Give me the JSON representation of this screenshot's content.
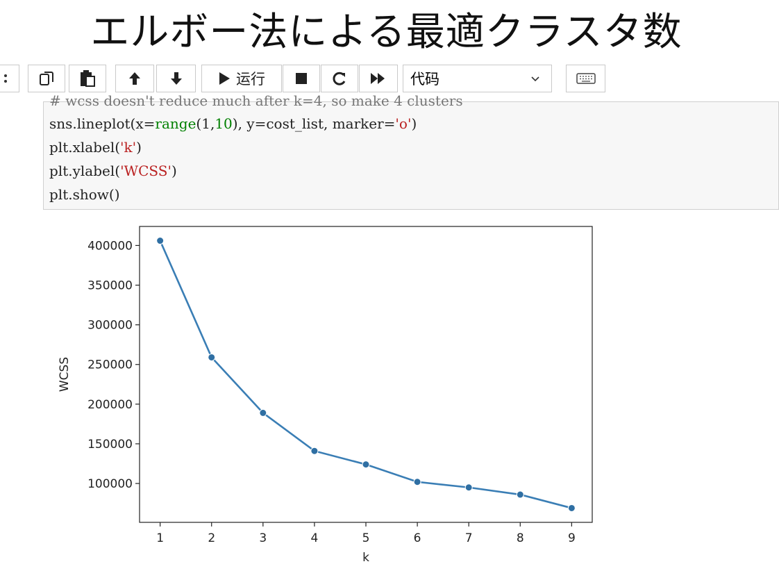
{
  "slide": {
    "title": "エルボー法による最適クラスタ数"
  },
  "toolbar": {
    "buttons": [
      {
        "name": "copy-cells-button",
        "icon": "copy-icon"
      },
      {
        "name": "paste-cells-button",
        "icon": "paste-icon"
      },
      {
        "name": "move-up-button",
        "icon": "arrow-up-icon"
      },
      {
        "name": "move-down-button",
        "icon": "arrow-down-icon"
      },
      {
        "name": "run-button",
        "icon": "play-icon"
      },
      {
        "name": "interrupt-button",
        "icon": "stop-icon"
      },
      {
        "name": "restart-button",
        "icon": "restart-icon"
      },
      {
        "name": "restart-run-all-button",
        "icon": "fast-forward-icon"
      },
      {
        "name": "command-palette-button",
        "icon": "keyboard-icon"
      }
    ],
    "run_label": "运行",
    "cell_type_selected": "代码"
  },
  "code": {
    "line0": "# wcss doesn't reduce much after k=4, so make 4 clusters",
    "line1_a": "sns.lineplot(x=",
    "line1_b": "range",
    "line1_c": "(1,",
    "line1_d": "10",
    "line1_e": "), y=cost_list, marker=",
    "line1_f": "'o'",
    "line1_g": ")",
    "line2_a": "plt.xlabel(",
    "line2_b": "'k'",
    "line2_c": ")",
    "line3_a": "plt.ylabel(",
    "line3_b": "'WCSS'",
    "line3_c": ")",
    "line4": "plt.show()"
  },
  "colors": {
    "line": "#3a7eb5",
    "marker": "#2f6fa3",
    "run_accent": "#222222"
  },
  "chart_data": {
    "type": "line",
    "title": "",
    "xlabel": "k",
    "ylabel": "WCSS",
    "x": [
      1,
      2,
      3,
      4,
      5,
      6,
      7,
      8,
      9
    ],
    "series": [
      {
        "values": [
          406000,
          259000,
          189000,
          141000,
          124000,
          102000,
          95000,
          86000,
          69000
        ]
      }
    ],
    "xlim": [
      0.6,
      9.4
    ],
    "ylim": [
      51000,
      424000
    ],
    "xticks": [
      "1",
      "2",
      "3",
      "4",
      "5",
      "6",
      "7",
      "8",
      "9"
    ],
    "yticks": [
      "100000",
      "150000",
      "200000",
      "250000",
      "300000",
      "350000",
      "400000"
    ],
    "grid": false,
    "marker": "o"
  }
}
